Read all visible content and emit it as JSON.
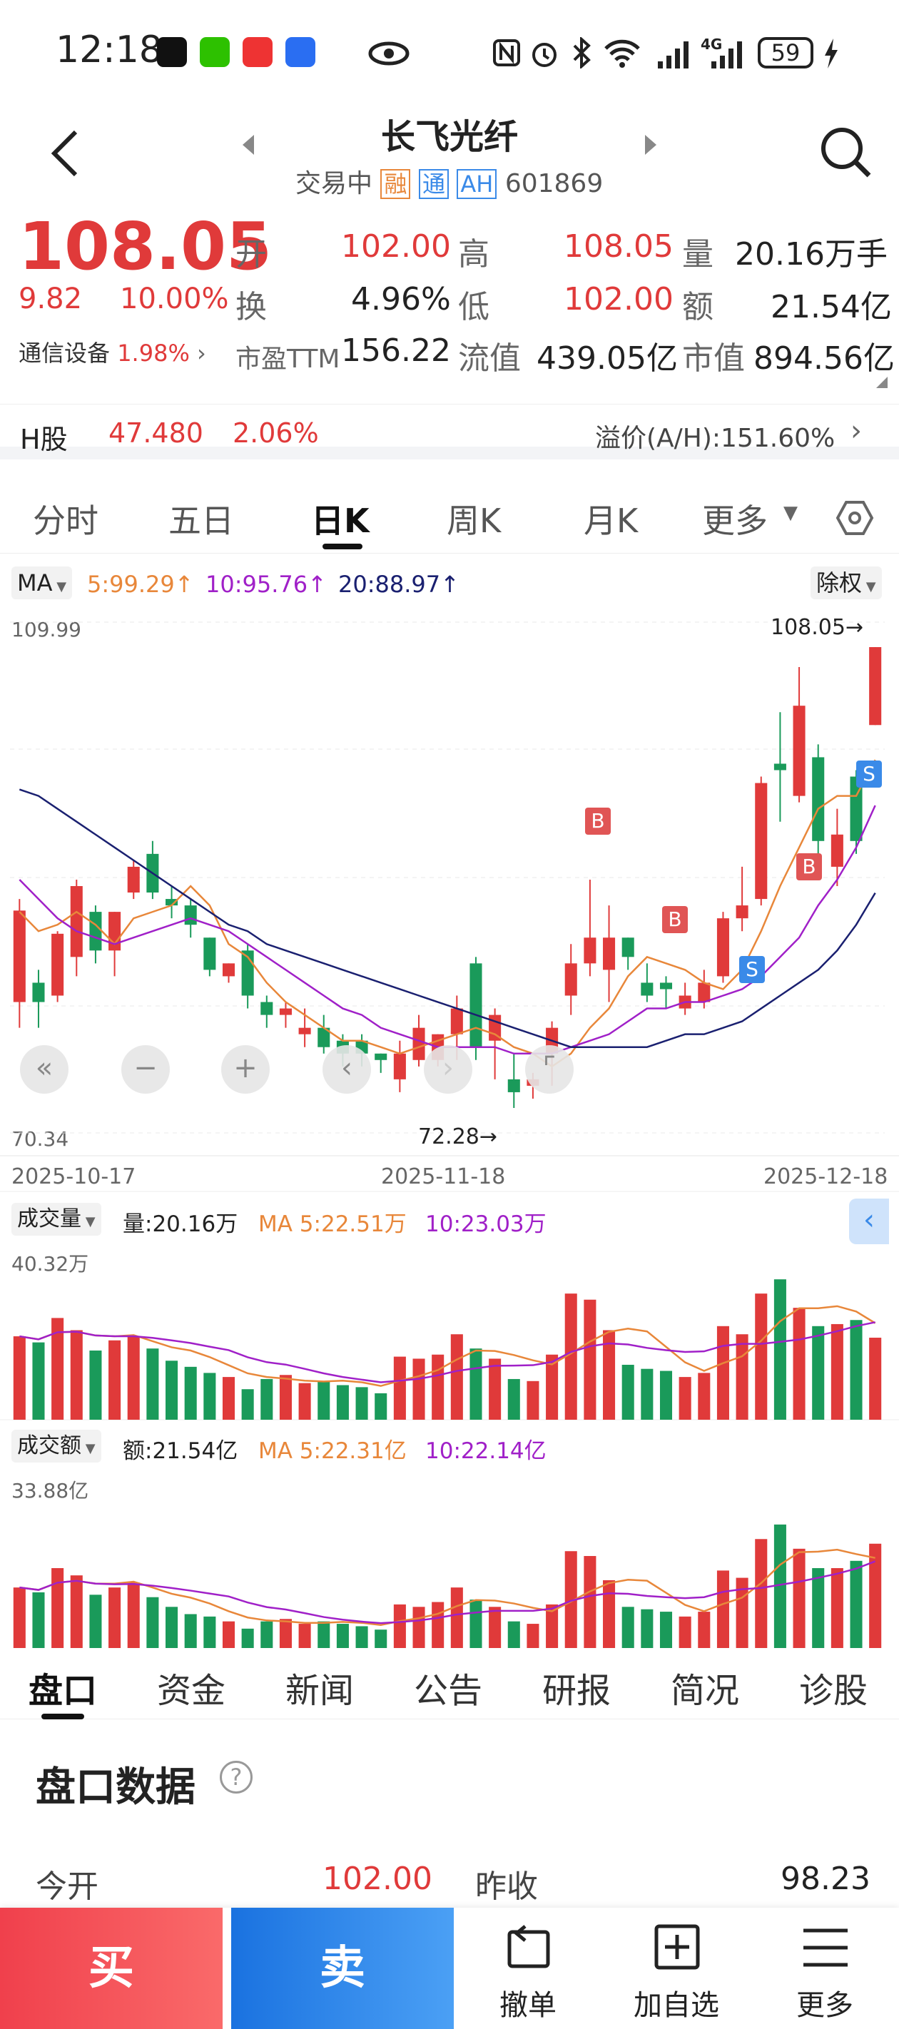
{
  "status": {
    "time": "12:18",
    "battery": "59",
    "signal": "4G"
  },
  "nav": {
    "title": "长飞光纤",
    "sub_status": "交易中",
    "tag_rong": "融",
    "tag_tong": "通",
    "tag_ah": "AH",
    "code": "601869"
  },
  "quote": {
    "price": "108.05",
    "change": "9.82",
    "change_pct": "10.00%",
    "sector": "通信设备",
    "sector_pct": "1.98%",
    "open_label": "开",
    "open": "102.00",
    "high_label": "高",
    "high": "108.05",
    "vol_label": "量",
    "vol": "20.16万手",
    "turnover_label": "换",
    "turnover": "4.96%",
    "low_label": "低",
    "low": "102.00",
    "amt_label": "额",
    "amt": "21.54亿",
    "pe_label": "市盈TTM",
    "pe": "156.22",
    "float_label": "流值",
    "float_cap": "439.05亿",
    "mcap_label": "市值",
    "mcap": "894.56亿"
  },
  "hshare": {
    "label": "H股",
    "price": "47.480",
    "pct": "2.06%",
    "premium": "溢价(A/H):151.60%"
  },
  "tabs": {
    "t1": "分时",
    "t2": "五日",
    "t3": "日K",
    "t4": "周K",
    "t5": "月K",
    "t6": "更多"
  },
  "chart": {
    "ma_btn": "MA",
    "ma5": "5:99.29↑",
    "ma10": "10:95.76↑",
    "ma20": "20:88.97↑",
    "fq": "除权",
    "top_val": "109.99",
    "bot_val": "70.34",
    "high_mark": "108.05→",
    "low_mark": "72.28→",
    "d1": "2025-10-17",
    "d2": "2025-11-18",
    "d3": "2025-12-18",
    "b_label": "B",
    "s_label": "S",
    "vol_btn": "成交量",
    "vol_text": "量:20.16万",
    "vol_ma5": "MA 5:22.51万",
    "vol_ma10": "10:23.03万",
    "vol_max": "40.32万",
    "amt_btn": "成交额",
    "amt_text": "额:21.54亿",
    "amt_ma5": "MA 5:22.31亿",
    "amt_ma10": "10:22.14亿",
    "amt_max": "33.88亿"
  },
  "bottom_tabs": {
    "b1": "盘口",
    "b2": "资金",
    "b3": "新闻",
    "b4": "公告",
    "b5": "研报",
    "b6": "简况",
    "b7": "诊股"
  },
  "pankou": {
    "title": "盘口数据",
    "open_label": "今开",
    "open_val": "102.00",
    "prev_label": "昨收",
    "prev_val": "98.23"
  },
  "footer": {
    "buy": "买",
    "sell": "卖",
    "cancel": "撤单",
    "watch": "加自选",
    "more": "更多"
  },
  "chart_data": {
    "type": "candlestick",
    "ylim": [
      70.34,
      109.99
    ],
    "candles": [
      {
        "o": 80.5,
        "h": 88.5,
        "l": 78.5,
        "c": 87.6
      },
      {
        "o": 82.0,
        "h": 83.0,
        "l": 78.5,
        "c": 80.5
      },
      {
        "o": 81.0,
        "h": 86.0,
        "l": 80.5,
        "c": 85.8
      },
      {
        "o": 84.0,
        "h": 90.0,
        "l": 82.5,
        "c": 89.5
      },
      {
        "o": 87.5,
        "h": 88.0,
        "l": 83.5,
        "c": 84.5
      },
      {
        "o": 84.5,
        "h": 87.5,
        "l": 82.5,
        "c": 87.5
      },
      {
        "o": 89.0,
        "h": 91.5,
        "l": 88.5,
        "c": 91.0
      },
      {
        "o": 92.0,
        "h": 93.0,
        "l": 88.5,
        "c": 89.0
      },
      {
        "o": 88.5,
        "h": 89.5,
        "l": 87.0,
        "c": 88.0
      },
      {
        "o": 88.0,
        "h": 88.5,
        "l": 85.5,
        "c": 86.5
      },
      {
        "o": 85.5,
        "h": 85.5,
        "l": 82.5,
        "c": 83.0
      },
      {
        "o": 82.5,
        "h": 83.5,
        "l": 82.0,
        "c": 83.5
      },
      {
        "o": 84.5,
        "h": 85.0,
        "l": 80.0,
        "c": 81.0
      },
      {
        "o": 80.5,
        "h": 81.0,
        "l": 78.5,
        "c": 79.5
      },
      {
        "o": 79.5,
        "h": 80.5,
        "l": 78.5,
        "c": 80.0
      },
      {
        "o": 78.0,
        "h": 80.0,
        "l": 77.0,
        "c": 78.5
      },
      {
        "o": 78.5,
        "h": 79.5,
        "l": 76.5,
        "c": 77.0
      },
      {
        "o": 77.5,
        "h": 78.0,
        "l": 75.5,
        "c": 76.5
      },
      {
        "o": 77.5,
        "h": 78.0,
        "l": 75.5,
        "c": 76.5
      },
      {
        "o": 76.5,
        "h": 76.5,
        "l": 75.0,
        "c": 76.0
      },
      {
        "o": 74.5,
        "h": 77.5,
        "l": 73.5,
        "c": 76.5
      },
      {
        "o": 76.0,
        "h": 79.5,
        "l": 75.5,
        "c": 78.5
      },
      {
        "o": 76.0,
        "h": 78.0,
        "l": 75.5,
        "c": 78.0
      },
      {
        "o": 78.0,
        "h": 81.0,
        "l": 76.0,
        "c": 80.0
      },
      {
        "o": 83.5,
        "h": 84.0,
        "l": 76.0,
        "c": 77.0
      },
      {
        "o": 77.5,
        "h": 80.0,
        "l": 74.5,
        "c": 79.5
      },
      {
        "o": 74.5,
        "h": 76.5,
        "l": 72.28,
        "c": 73.5
      },
      {
        "o": 74.0,
        "h": 75.0,
        "l": 73.0,
        "c": 74.5
      },
      {
        "o": 76.5,
        "h": 79.0,
        "l": 74.0,
        "c": 78.5
      },
      {
        "o": 81.0,
        "h": 85.0,
        "l": 79.5,
        "c": 83.5
      },
      {
        "o": 83.5,
        "h": 90.0,
        "l": 82.5,
        "c": 85.5
      },
      {
        "o": 83.0,
        "h": 88.0,
        "l": 80.5,
        "c": 85.5
      },
      {
        "o": 85.5,
        "h": 85.5,
        "l": 83.0,
        "c": 84.0
      },
      {
        "o": 82.0,
        "h": 83.5,
        "l": 80.5,
        "c": 81.0
      },
      {
        "o": 82.0,
        "h": 82.5,
        "l": 80.0,
        "c": 81.5
      },
      {
        "o": 80.0,
        "h": 82.0,
        "l": 79.5,
        "c": 81.0
      },
      {
        "o": 80.5,
        "h": 83.0,
        "l": 80.0,
        "c": 82.0
      },
      {
        "o": 82.5,
        "h": 87.5,
        "l": 82.0,
        "c": 87.0
      },
      {
        "o": 87.0,
        "h": 91.0,
        "l": 86.0,
        "c": 88.0
      },
      {
        "o": 88.5,
        "h": 98.0,
        "l": 88.0,
        "c": 97.5
      },
      {
        "o": 99.0,
        "h": 103.0,
        "l": 94.5,
        "c": 98.5
      },
      {
        "o": 96.5,
        "h": 106.5,
        "l": 96.0,
        "c": 103.5
      },
      {
        "o": 99.5,
        "h": 100.5,
        "l": 91.0,
        "c": 93.0
      },
      {
        "o": 91.0,
        "h": 95.5,
        "l": 89.5,
        "c": 93.5
      },
      {
        "o": 98.0,
        "h": 98.5,
        "l": 92.0,
        "c": 93.0
      },
      {
        "o": 102.0,
        "h": 108.05,
        "l": 102.0,
        "c": 108.05
      }
    ],
    "ma5": [
      87.5,
      86.0,
      86.5,
      87.5,
      86.5,
      85.0,
      87.0,
      87.5,
      88.0,
      89.5,
      88.0,
      85.0,
      84.0,
      82.0,
      80.5,
      79.5,
      78.5,
      77.5,
      77.5,
      77.0,
      76.5,
      77.0,
      77.5,
      78.0,
      78.5,
      78.0,
      77.0,
      76.5,
      75.5,
      76.5,
      78.5,
      80.0,
      82.5,
      84.0,
      83.5,
      83.0,
      82.0,
      81.5,
      83.0,
      86.0,
      89.5,
      92.5,
      95.5,
      96.5,
      96.5,
      99.3
    ],
    "ma10": [
      90.0,
      88.5,
      87.0,
      86.0,
      85.5,
      85.0,
      85.5,
      86.0,
      86.5,
      87.0,
      86.5,
      86.0,
      85.0,
      84.0,
      83.0,
      82.0,
      81.0,
      80.0,
      79.5,
      78.5,
      78.0,
      77.5,
      77.0,
      77.0,
      77.0,
      77.0,
      76.5,
      76.5,
      76.5,
      77.0,
      77.5,
      78.0,
      79.0,
      80.0,
      80.0,
      80.5,
      80.5,
      81.0,
      81.5,
      82.5,
      84.0,
      85.5,
      88.0,
      90.0,
      92.5,
      95.76
    ],
    "ma20": [
      97.0,
      96.5,
      95.5,
      94.5,
      93.5,
      92.5,
      91.5,
      90.5,
      89.5,
      88.5,
      87.5,
      86.5,
      86.0,
      85.0,
      84.5,
      84.0,
      83.5,
      83.0,
      82.5,
      82.0,
      81.5,
      81.0,
      80.5,
      80.0,
      79.5,
      79.0,
      78.5,
      78.0,
      77.5,
      77.0,
      77.0,
      77.0,
      77.0,
      77.0,
      77.5,
      78.0,
      78.0,
      78.5,
      79.0,
      80.0,
      81.0,
      82.0,
      83.0,
      84.5,
      86.5,
      88.97
    ],
    "volume": [
      20.5,
      19.0,
      25.0,
      22.0,
      17.0,
      19.5,
      20.5,
      17.5,
      14.5,
      13.0,
      11.5,
      10.5,
      7.5,
      10.0,
      11.0,
      9.0,
      9.5,
      8.5,
      8.0,
      6.5,
      15.5,
      15.0,
      16.0,
      21.0,
      17.5,
      15.0,
      10.0,
      9.5,
      16.0,
      31.0,
      29.5,
      22.0,
      13.5,
      12.5,
      12.0,
      10.5,
      11.5,
      23.0,
      21.0,
      31.0,
      34.5,
      27.5,
      23.0,
      23.5,
      24.5,
      20.16
    ],
    "amount": [
      12.5,
      11.5,
      16.5,
      15.0,
      11.0,
      12.5,
      13.5,
      10.5,
      8.5,
      7.0,
      6.5,
      5.5,
      4.0,
      5.5,
      6.0,
      5.0,
      5.5,
      5.0,
      4.5,
      3.8,
      9.0,
      8.5,
      9.5,
      12.5,
      10.0,
      8.5,
      5.5,
      5.0,
      9.0,
      20.0,
      19.0,
      14.0,
      8.5,
      8.0,
      7.5,
      6.5,
      7.5,
      16.0,
      14.5,
      22.5,
      25.5,
      20.5,
      16.5,
      16.5,
      18.0,
      21.54
    ]
  }
}
